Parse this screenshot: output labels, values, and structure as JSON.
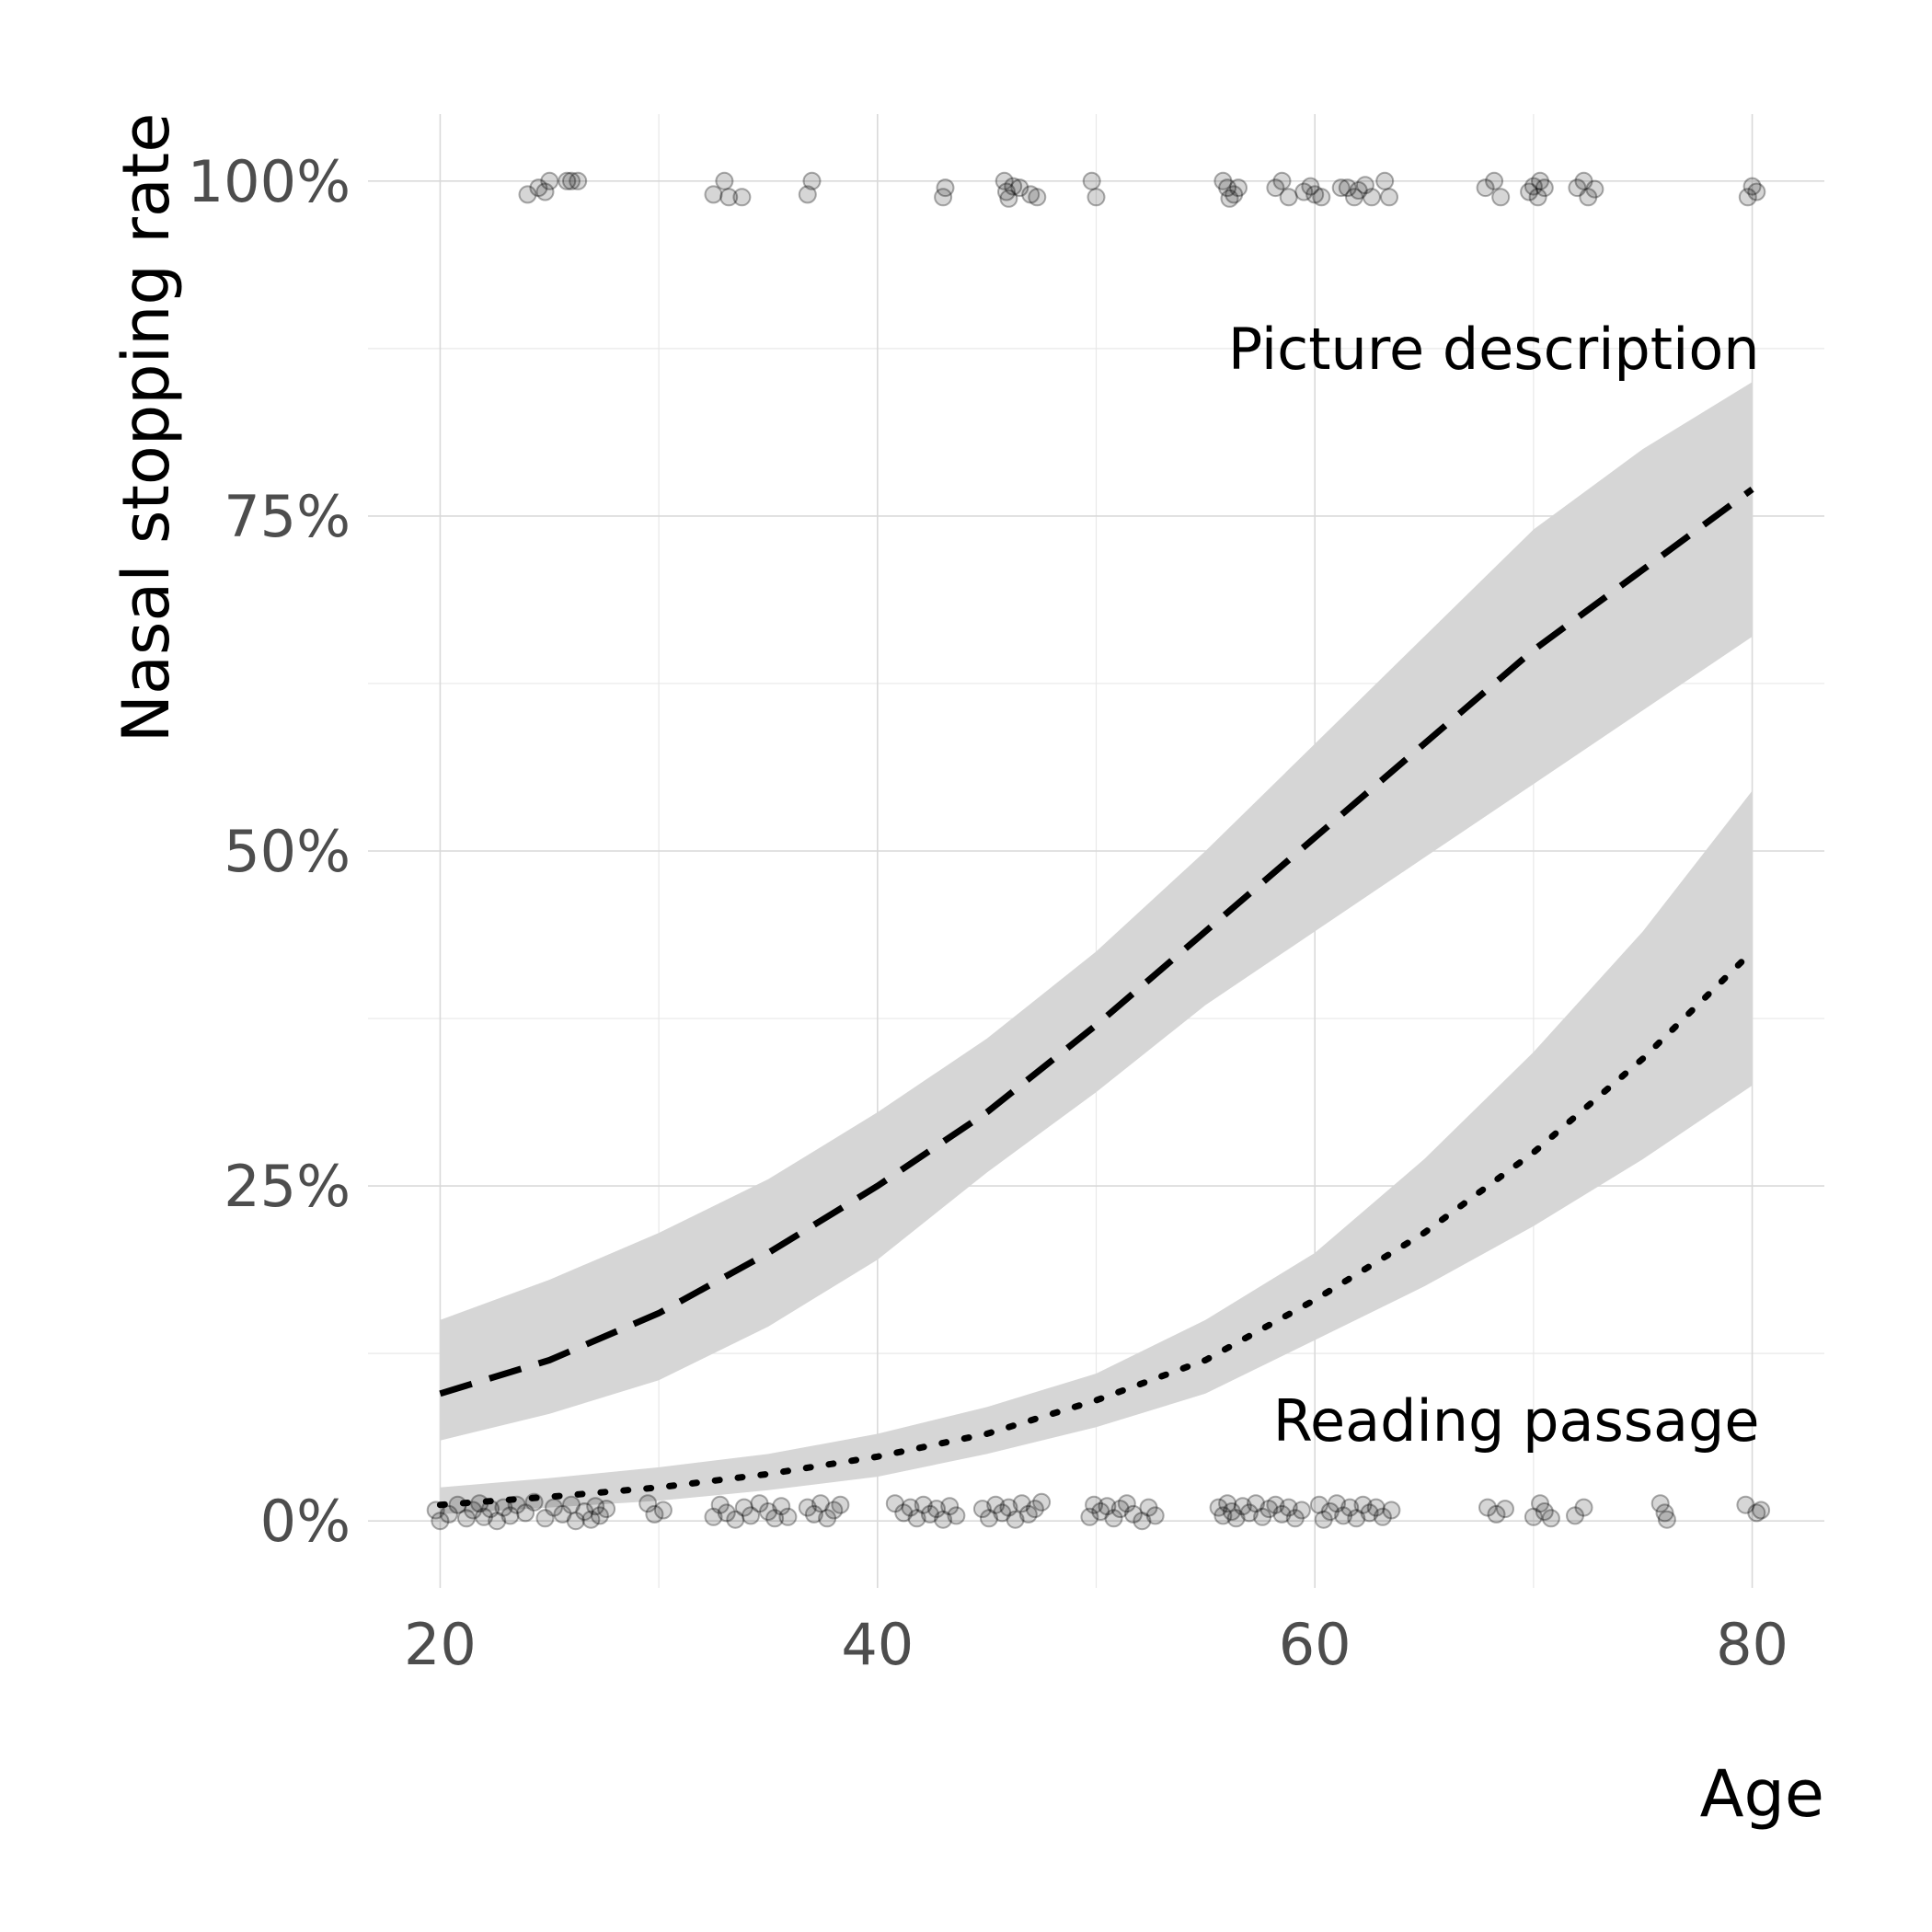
{
  "chart_data": {
    "type": "line",
    "xlabel": "Age",
    "ylabel": "Nasal stopping rate",
    "xlim": [
      16.7,
      83.3
    ],
    "ylim": [
      -5,
      105
    ],
    "x_ticks": [
      20,
      40,
      60,
      80
    ],
    "x_tick_labels": [
      "20",
      "40",
      "60",
      "80"
    ],
    "y_ticks": [
      0,
      25,
      50,
      75,
      100
    ],
    "y_tick_labels": [
      "0%",
      "25%",
      "50%",
      "75%",
      "100%"
    ],
    "grid": true,
    "annotations": [
      {
        "text": "Picture description",
        "x": 80,
        "y": 87.5,
        "anchor": "end"
      },
      {
        "text": "Reading passage",
        "x": 80,
        "y": 7.5,
        "anchor": "end"
      }
    ],
    "series": [
      {
        "style": "dashed",
        "x": [
          20,
          25,
          30,
          35,
          40,
          45,
          50,
          55,
          60,
          65,
          70,
          75,
          80
        ],
        "y": [
          9.5,
          12,
          15.5,
          20,
          25,
          30.5,
          37,
          44,
          51,
          58,
          65,
          71,
          77
        ],
        "lower": [
          6,
          8,
          10.5,
          14.5,
          19.5,
          26,
          32,
          38.5,
          44,
          49.5,
          55,
          60.5,
          66
        ],
        "upper": [
          15,
          18,
          21.5,
          25.5,
          30.5,
          36,
          42.5,
          50,
          58,
          66,
          74,
          80,
          85
        ]
      },
      {
        "style": "dotted",
        "x": [
          20,
          25,
          30,
          35,
          40,
          45,
          50,
          55,
          60,
          65,
          70,
          75,
          80
        ],
        "y": [
          1.2,
          1.8,
          2.5,
          3.5,
          4.8,
          6.5,
          9,
          12,
          16.5,
          21.5,
          27.5,
          34.5,
          42.5
        ],
        "lower": [
          0.5,
          1,
          1.5,
          2.3,
          3.3,
          5,
          7,
          9.5,
          13.5,
          17.5,
          22,
          27,
          32.5
        ],
        "upper": [
          2.5,
          3.2,
          4,
          5,
          6.5,
          8.5,
          11,
          15,
          20,
          27,
          35,
          44,
          54.5
        ]
      }
    ],
    "points_y1": [
      {
        "x": 24,
        "y": 99
      },
      {
        "x": 24.5,
        "y": 99.5
      },
      {
        "x": 24.8,
        "y": 99.2
      },
      {
        "x": 25,
        "y": 100
      },
      {
        "x": 25.8,
        "y": 100
      },
      {
        "x": 26,
        "y": 100
      },
      {
        "x": 26.3,
        "y": 100
      },
      {
        "x": 32.5,
        "y": 99
      },
      {
        "x": 33,
        "y": 100
      },
      {
        "x": 33.2,
        "y": 98.8
      },
      {
        "x": 33.8,
        "y": 98.8
      },
      {
        "x": 36.8,
        "y": 99
      },
      {
        "x": 37,
        "y": 100
      },
      {
        "x": 43,
        "y": 98.8
      },
      {
        "x": 43.1,
        "y": 99.5
      },
      {
        "x": 45.8,
        "y": 100
      },
      {
        "x": 45.9,
        "y": 99.2
      },
      {
        "x": 46,
        "y": 98.7
      },
      {
        "x": 46.2,
        "y": 99.6
      },
      {
        "x": 46.5,
        "y": 99.5
      },
      {
        "x": 47,
        "y": 99
      },
      {
        "x": 47.3,
        "y": 98.8
      },
      {
        "x": 49.8,
        "y": 100
      },
      {
        "x": 50,
        "y": 98.8
      },
      {
        "x": 55.8,
        "y": 100
      },
      {
        "x": 56,
        "y": 99.5
      },
      {
        "x": 56.1,
        "y": 98.7
      },
      {
        "x": 56.3,
        "y": 99
      },
      {
        "x": 56.5,
        "y": 99.5
      },
      {
        "x": 58.2,
        "y": 99.5
      },
      {
        "x": 58.5,
        "y": 100
      },
      {
        "x": 58.8,
        "y": 98.8
      },
      {
        "x": 59.5,
        "y": 99.2
      },
      {
        "x": 59.8,
        "y": 99.6
      },
      {
        "x": 60,
        "y": 99
      },
      {
        "x": 60.3,
        "y": 98.8
      },
      {
        "x": 61.2,
        "y": 99.5
      },
      {
        "x": 61.5,
        "y": 99.5
      },
      {
        "x": 61.8,
        "y": 98.8
      },
      {
        "x": 62,
        "y": 99.3
      },
      {
        "x": 62.3,
        "y": 99.7
      },
      {
        "x": 62.6,
        "y": 98.8
      },
      {
        "x": 63.2,
        "y": 100
      },
      {
        "x": 63.4,
        "y": 98.8
      },
      {
        "x": 67.8,
        "y": 99.5
      },
      {
        "x": 68.2,
        "y": 100
      },
      {
        "x": 68.5,
        "y": 98.8
      },
      {
        "x": 69.8,
        "y": 99.2
      },
      {
        "x": 70,
        "y": 99.6
      },
      {
        "x": 70.2,
        "y": 98.8
      },
      {
        "x": 70.3,
        "y": 100
      },
      {
        "x": 70.5,
        "y": 99.5
      },
      {
        "x": 72,
        "y": 99.5
      },
      {
        "x": 72.3,
        "y": 100
      },
      {
        "x": 72.5,
        "y": 98.8
      },
      {
        "x": 72.8,
        "y": 99.4
      },
      {
        "x": 79.8,
        "y": 98.8
      },
      {
        "x": 80,
        "y": 99.6
      },
      {
        "x": 80.2,
        "y": 99.2
      }
    ],
    "points_y0": [
      {
        "x": 19.8,
        "y": 0.8
      },
      {
        "x": 20,
        "y": 0
      },
      {
        "x": 20.4,
        "y": 0.5
      },
      {
        "x": 20.8,
        "y": 1.2
      },
      {
        "x": 21.2,
        "y": 0.2
      },
      {
        "x": 21.5,
        "y": 0.8
      },
      {
        "x": 21.8,
        "y": 1.3
      },
      {
        "x": 22,
        "y": 0.3
      },
      {
        "x": 22.3,
        "y": 0.9
      },
      {
        "x": 22.6,
        "y": 0
      },
      {
        "x": 22.9,
        "y": 1
      },
      {
        "x": 23.2,
        "y": 0.4
      },
      {
        "x": 23.5,
        "y": 1.2
      },
      {
        "x": 23.9,
        "y": 0.6
      },
      {
        "x": 24.3,
        "y": 1.4
      },
      {
        "x": 24.8,
        "y": 0.2
      },
      {
        "x": 25.2,
        "y": 1
      },
      {
        "x": 25.6,
        "y": 0.5
      },
      {
        "x": 26,
        "y": 1.2
      },
      {
        "x": 26.2,
        "y": 0
      },
      {
        "x": 26.6,
        "y": 0.7
      },
      {
        "x": 26.9,
        "y": 0.1
      },
      {
        "x": 27.1,
        "y": 1.1
      },
      {
        "x": 27.3,
        "y": 0.4
      },
      {
        "x": 27.6,
        "y": 0.9
      },
      {
        "x": 29.5,
        "y": 1.3
      },
      {
        "x": 29.8,
        "y": 0.5
      },
      {
        "x": 30.2,
        "y": 0.8
      },
      {
        "x": 32.5,
        "y": 0.3
      },
      {
        "x": 32.8,
        "y": 1.2
      },
      {
        "x": 33.1,
        "y": 0.6
      },
      {
        "x": 33.5,
        "y": 0.1
      },
      {
        "x": 33.9,
        "y": 1
      },
      {
        "x": 34.2,
        "y": 0.4
      },
      {
        "x": 34.6,
        "y": 1.3
      },
      {
        "x": 35,
        "y": 0.7
      },
      {
        "x": 35.3,
        "y": 0.2
      },
      {
        "x": 35.6,
        "y": 1.1
      },
      {
        "x": 35.9,
        "y": 0.3
      },
      {
        "x": 36.8,
        "y": 1
      },
      {
        "x": 37.1,
        "y": 0.5
      },
      {
        "x": 37.4,
        "y": 1.3
      },
      {
        "x": 37.7,
        "y": 0.2
      },
      {
        "x": 38,
        "y": 0.8
      },
      {
        "x": 38.3,
        "y": 1.2
      },
      {
        "x": 40.8,
        "y": 1.3
      },
      {
        "x": 41.2,
        "y": 0.6
      },
      {
        "x": 41.5,
        "y": 1
      },
      {
        "x": 41.8,
        "y": 0.2
      },
      {
        "x": 42.1,
        "y": 1.2
      },
      {
        "x": 42.4,
        "y": 0.5
      },
      {
        "x": 42.7,
        "y": 0.9
      },
      {
        "x": 43,
        "y": 0.1
      },
      {
        "x": 43.3,
        "y": 1.1
      },
      {
        "x": 43.6,
        "y": 0.4
      },
      {
        "x": 44.8,
        "y": 0.9
      },
      {
        "x": 45.1,
        "y": 0.2
      },
      {
        "x": 45.4,
        "y": 1.2
      },
      {
        "x": 45.7,
        "y": 0.6
      },
      {
        "x": 46,
        "y": 1
      },
      {
        "x": 46.3,
        "y": 0.1
      },
      {
        "x": 46.6,
        "y": 1.3
      },
      {
        "x": 46.9,
        "y": 0.5
      },
      {
        "x": 47.2,
        "y": 0.9
      },
      {
        "x": 47.5,
        "y": 1.4
      },
      {
        "x": 49.7,
        "y": 0.3
      },
      {
        "x": 49.9,
        "y": 1.2
      },
      {
        "x": 50.2,
        "y": 0.7
      },
      {
        "x": 50.5,
        "y": 1.1
      },
      {
        "x": 50.8,
        "y": 0.2
      },
      {
        "x": 51.1,
        "y": 0.9
      },
      {
        "x": 51.4,
        "y": 1.3
      },
      {
        "x": 51.7,
        "y": 0.5
      },
      {
        "x": 52.1,
        "y": 0
      },
      {
        "x": 52.4,
        "y": 1
      },
      {
        "x": 52.7,
        "y": 0.4
      },
      {
        "x": 55.6,
        "y": 1
      },
      {
        "x": 55.8,
        "y": 0.4
      },
      {
        "x": 56,
        "y": 1.3
      },
      {
        "x": 56.2,
        "y": 0.7
      },
      {
        "x": 56.4,
        "y": 0.2
      },
      {
        "x": 56.7,
        "y": 1.1
      },
      {
        "x": 57,
        "y": 0.6
      },
      {
        "x": 57.3,
        "y": 1.3
      },
      {
        "x": 57.6,
        "y": 0.3
      },
      {
        "x": 57.9,
        "y": 0.9
      },
      {
        "x": 58.2,
        "y": 1.2
      },
      {
        "x": 58.5,
        "y": 0.5
      },
      {
        "x": 58.8,
        "y": 1
      },
      {
        "x": 59.1,
        "y": 0.2
      },
      {
        "x": 59.4,
        "y": 0.8
      },
      {
        "x": 60.2,
        "y": 1.2
      },
      {
        "x": 60.4,
        "y": 0.1
      },
      {
        "x": 60.7,
        "y": 0.7
      },
      {
        "x": 61,
        "y": 1.3
      },
      {
        "x": 61.3,
        "y": 0.4
      },
      {
        "x": 61.6,
        "y": 1
      },
      {
        "x": 61.9,
        "y": 0.2
      },
      {
        "x": 62.2,
        "y": 1.2
      },
      {
        "x": 62.5,
        "y": 0.6
      },
      {
        "x": 62.8,
        "y": 1
      },
      {
        "x": 63.1,
        "y": 0.3
      },
      {
        "x": 63.5,
        "y": 0.8
      },
      {
        "x": 67.9,
        "y": 1
      },
      {
        "x": 68.3,
        "y": 0.5
      },
      {
        "x": 68.7,
        "y": 0.9
      },
      {
        "x": 70,
        "y": 0.3
      },
      {
        "x": 70.3,
        "y": 1.3
      },
      {
        "x": 70.5,
        "y": 0.7
      },
      {
        "x": 70.8,
        "y": 0.2
      },
      {
        "x": 71.9,
        "y": 0.4
      },
      {
        "x": 72.3,
        "y": 1
      },
      {
        "x": 75.8,
        "y": 1.3
      },
      {
        "x": 76,
        "y": 0.6
      },
      {
        "x": 76.1,
        "y": 0.1
      },
      {
        "x": 79.7,
        "y": 1.2
      },
      {
        "x": 80.2,
        "y": 0.6
      },
      {
        "x": 80.4,
        "y": 0.8
      }
    ]
  }
}
